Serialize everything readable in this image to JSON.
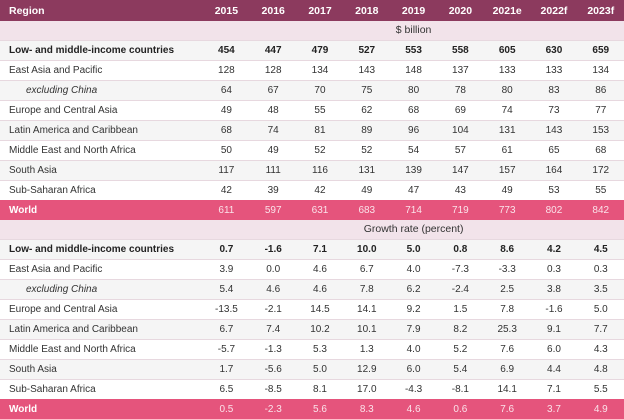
{
  "header": {
    "region_label": "Region",
    "years": [
      "2015",
      "2016",
      "2017",
      "2018",
      "2019",
      "2020",
      "2021e",
      "2022f",
      "2023f"
    ]
  },
  "sections": [
    {
      "unit": "$ billion",
      "rows": [
        {
          "label": "Low- and middle-income countries",
          "values": [
            "454",
            "447",
            "479",
            "527",
            "553",
            "558",
            "605",
            "630",
            "659"
          ]
        },
        {
          "label": "East Asia and Pacific",
          "values": [
            "128",
            "128",
            "134",
            "143",
            "148",
            "137",
            "133",
            "133",
            "134"
          ]
        },
        {
          "label": "excluding China",
          "values": [
            "64",
            "67",
            "70",
            "75",
            "80",
            "78",
            "80",
            "83",
            "86"
          ]
        },
        {
          "label": "Europe and Central Asia",
          "values": [
            "49",
            "48",
            "55",
            "62",
            "68",
            "69",
            "74",
            "73",
            "77"
          ]
        },
        {
          "label": "Latin America and Caribbean",
          "values": [
            "68",
            "74",
            "81",
            "89",
            "96",
            "104",
            "131",
            "143",
            "153"
          ]
        },
        {
          "label": "Middle East and North Africa",
          "values": [
            "50",
            "49",
            "52",
            "52",
            "54",
            "57",
            "61",
            "65",
            "68"
          ]
        },
        {
          "label": "South Asia",
          "values": [
            "117",
            "111",
            "116",
            "131",
            "139",
            "147",
            "157",
            "164",
            "172"
          ]
        },
        {
          "label": "Sub-Saharan Africa",
          "values": [
            "42",
            "39",
            "42",
            "49",
            "47",
            "43",
            "49",
            "53",
            "55"
          ]
        },
        {
          "label": "World",
          "values": [
            "611",
            "597",
            "631",
            "683",
            "714",
            "719",
            "773",
            "802",
            "842"
          ]
        }
      ]
    },
    {
      "unit": "Growth rate (percent)",
      "rows": [
        {
          "label": "Low- and middle-income countries",
          "values": [
            "0.7",
            "-1.6",
            "7.1",
            "10.0",
            "5.0",
            "0.8",
            "8.6",
            "4.2",
            "4.5"
          ]
        },
        {
          "label": "East Asia and Pacific",
          "values": [
            "3.9",
            "0.0",
            "4.6",
            "6.7",
            "4.0",
            "-7.3",
            "-3.3",
            "0.3",
            "0.3"
          ]
        },
        {
          "label": "excluding China",
          "values": [
            "5.4",
            "4.6",
            "4.6",
            "7.8",
            "6.2",
            "-2.4",
            "2.5",
            "3.8",
            "3.5"
          ]
        },
        {
          "label": "Europe and Central Asia",
          "values": [
            "-13.5",
            "-2.1",
            "14.5",
            "14.1",
            "9.2",
            "1.5",
            "7.8",
            "-1.6",
            "5.0"
          ]
        },
        {
          "label": "Latin America and Caribbean",
          "values": [
            "6.7",
            "7.4",
            "10.2",
            "10.1",
            "7.9",
            "8.2",
            "25.3",
            "9.1",
            "7.7"
          ]
        },
        {
          "label": "Middle East and North Africa",
          "values": [
            "-5.7",
            "-1.3",
            "5.3",
            "1.3",
            "4.0",
            "5.2",
            "7.6",
            "6.0",
            "4.3"
          ]
        },
        {
          "label": "South Asia",
          "values": [
            "1.7",
            "-5.6",
            "5.0",
            "12.9",
            "6.0",
            "5.4",
            "6.9",
            "4.4",
            "4.8"
          ]
        },
        {
          "label": "Sub-Saharan Africa",
          "values": [
            "6.5",
            "-8.5",
            "8.1",
            "17.0",
            "-4.3",
            "-8.1",
            "14.1",
            "7.1",
            "5.5"
          ]
        },
        {
          "label": "World",
          "values": [
            "0.5",
            "-2.3",
            "5.6",
            "8.3",
            "4.6",
            "0.6",
            "7.6",
            "3.7",
            "4.9"
          ]
        }
      ]
    }
  ]
}
